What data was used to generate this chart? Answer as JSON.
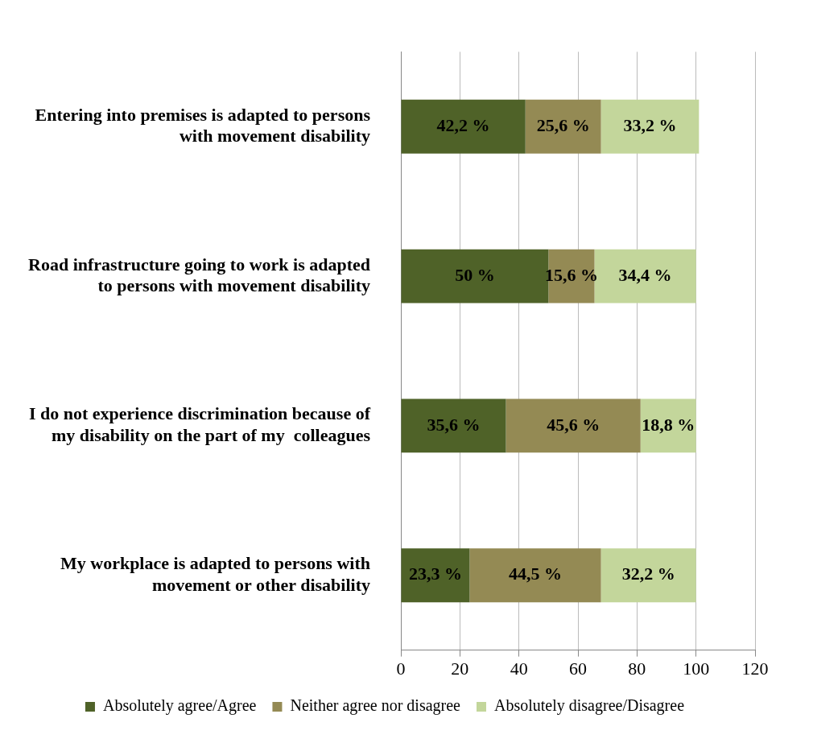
{
  "chart_data": {
    "type": "bar",
    "orientation": "horizontal",
    "stacked": true,
    "categories": [
      "Entering into premises is adapted to persons with movement disability",
      "Road infrastructure going to work is adapted to persons with movement disability",
      "I do not experience discrimination because of my disability on the part of my  colleagues",
      "My workplace is adapted to persons with movement or other disability"
    ],
    "series": [
      {
        "name": "Absolutely agree/Agree",
        "color": "#4f6228",
        "values": [
          42.2,
          50,
          35.6,
          23.3
        ],
        "value_labels": [
          "42,2 %",
          "50 %",
          "35,6 %",
          "23,3 %"
        ]
      },
      {
        "name": "Neither agree nor disagree",
        "color": "#948a54",
        "values": [
          25.6,
          15.6,
          45.6,
          44.5
        ],
        "value_labels": [
          "25,6 %",
          "15,6 %",
          "45,6 %",
          "44,5 %"
        ]
      },
      {
        "name": "Absolutely disagree/Disagree",
        "color": "#c3d69b",
        "values": [
          33.2,
          34.4,
          18.8,
          32.2
        ],
        "value_labels": [
          "33,2 %",
          "34,4 %",
          "18,8 %",
          "32,2 %"
        ]
      }
    ],
    "xlim": [
      0,
      120
    ],
    "xticks": [
      0,
      20,
      40,
      60,
      80,
      100,
      120
    ],
    "grid": "x",
    "legend": "bottom"
  }
}
